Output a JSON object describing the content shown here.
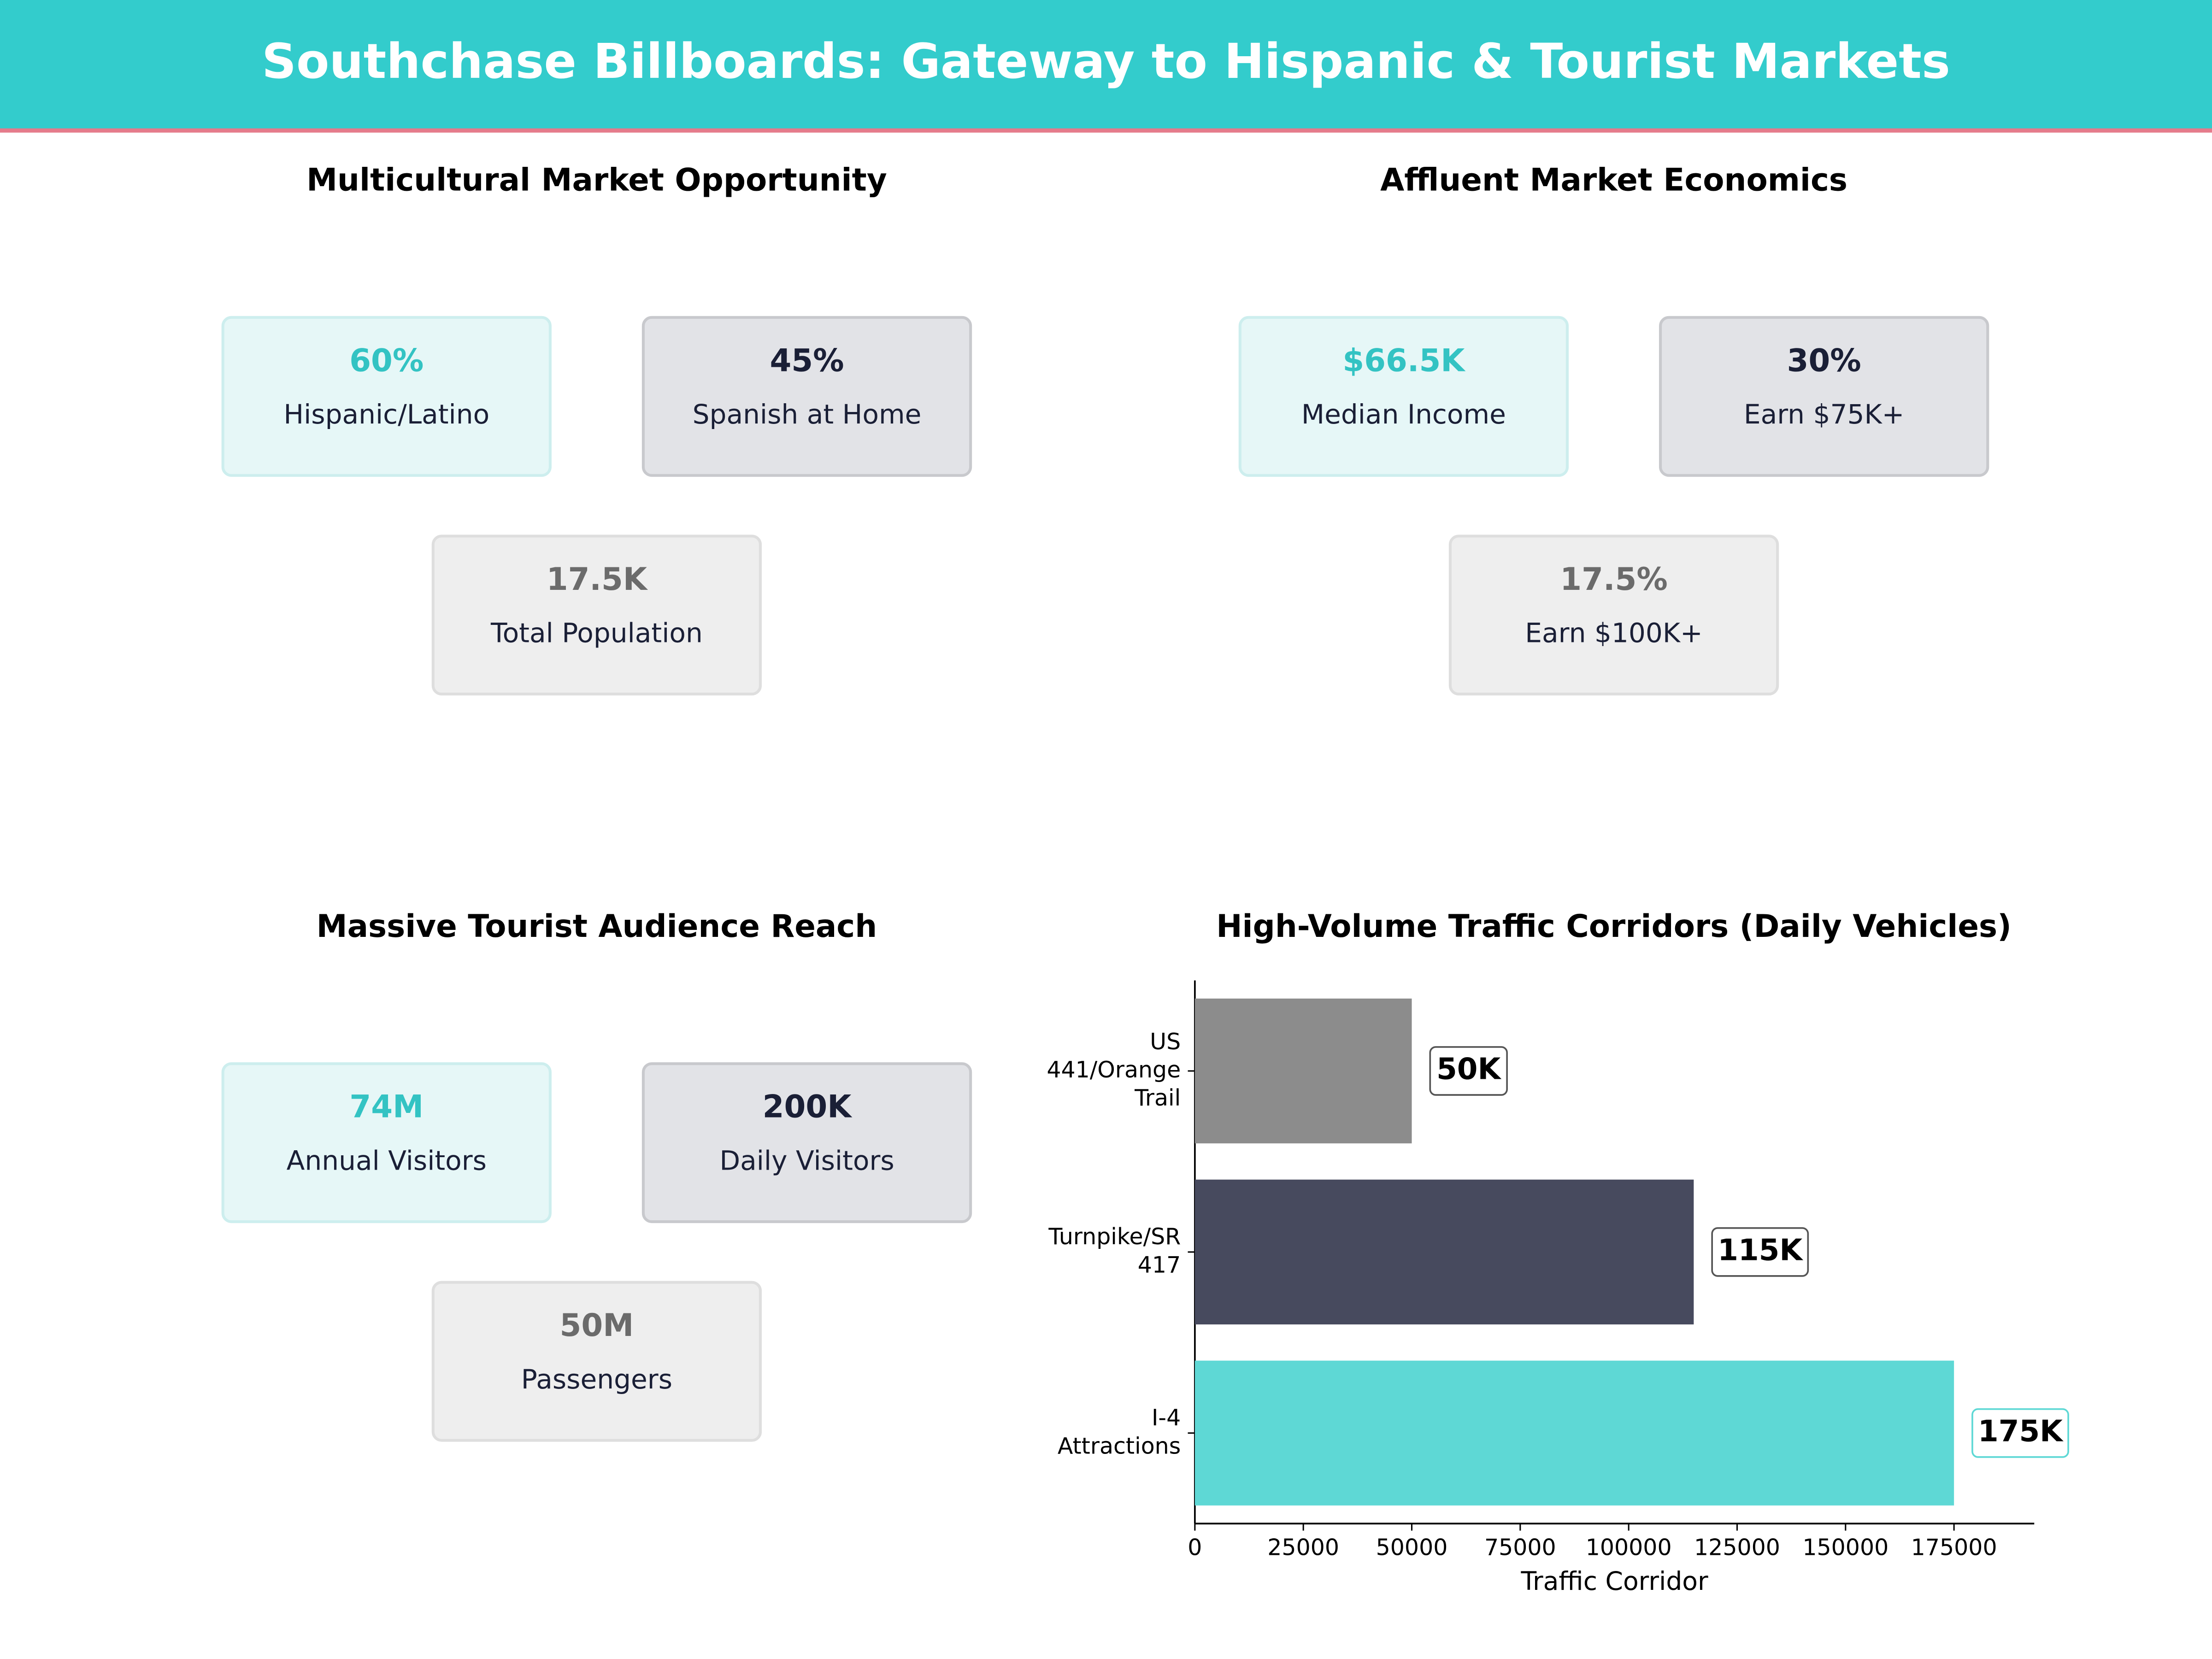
{
  "title": "Southchase Billboards: Gateway to Hispanic & Tourist Markets",
  "panels": [
    {
      "title": "Multicultural Market Opportunity",
      "kpis": [
        {
          "value": "60%",
          "label": "Hispanic/Latino"
        },
        {
          "value": "45%",
          "label": "Spanish at Home"
        },
        {
          "value": "17.5K",
          "label": "Total Population"
        }
      ]
    },
    {
      "title": "Affluent Market Economics",
      "kpis": [
        {
          "value": "$66.5K",
          "label": "Median Income"
        },
        {
          "value": "30%",
          "label": "Earn $75K+"
        },
        {
          "value": "17.5%",
          "label": "Earn $100K+"
        }
      ]
    },
    {
      "title": "Massive Tourist Audience Reach",
      "kpis": [
        {
          "value": "74M",
          "label": "Annual Visitors"
        },
        {
          "value": "200K",
          "label": "Daily Visitors"
        },
        {
          "value": "50M",
          "label": "Passengers"
        }
      ]
    }
  ],
  "chart_data": {
    "type": "barh",
    "title": "High-Volume Traffic Corridors (Daily Vehicles)",
    "categories": [
      "US\n441/Orange\nTrail",
      "Turnpike/SR\n417",
      "I-4\nAttractions"
    ],
    "values": [
      50000,
      115000,
      175000
    ],
    "value_labels": [
      "50K",
      "115K",
      "175K"
    ],
    "colors": [
      "#8c8c8c",
      "#474a5e",
      "#5ed8d5"
    ],
    "xlabel": "Traffic Corridor",
    "xlim": [
      0,
      193500
    ],
    "xticks": [
      0,
      25000,
      50000,
      75000,
      100000,
      125000,
      150000,
      175000
    ]
  }
}
